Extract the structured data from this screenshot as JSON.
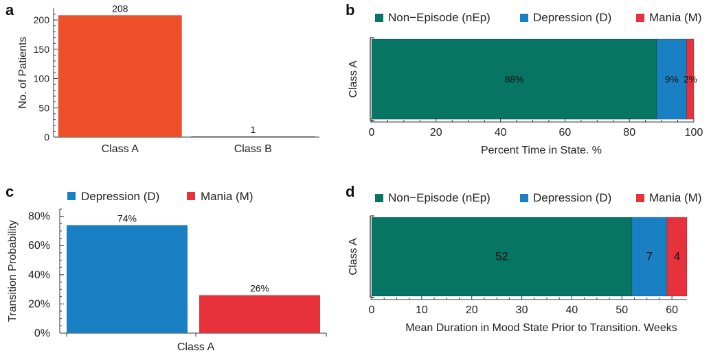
{
  "panel_labels": {
    "a": "a",
    "b": "b",
    "c": "c",
    "d": "d"
  },
  "colors": {
    "nEp": "#067563",
    "D": "#1a80c4",
    "M": "#e8323b",
    "A_bar": "#ee4f2a"
  },
  "chart_data": [
    {
      "id": "a",
      "type": "bar",
      "categories": [
        "Class A",
        "Class B"
      ],
      "values": [
        208,
        1
      ],
      "data_labels": [
        "208",
        "1"
      ],
      "ylabel": "No. of Patients",
      "ylim": [
        0,
        220
      ],
      "yticks": [
        0,
        50,
        100,
        150,
        200
      ],
      "ytick_labels": [
        "0",
        "50",
        "100",
        "150",
        "200"
      ]
    },
    {
      "id": "b",
      "type": "bar",
      "orientation": "horizontal-stacked",
      "categories": [
        "Class A"
      ],
      "series": [
        {
          "name": "Non−Episode (nEp)",
          "key": "nEp",
          "values": [
            88.5
          ],
          "label": "88%"
        },
        {
          "name": "Depression (D)",
          "key": "D",
          "values": [
            9.3
          ],
          "label": "9%"
        },
        {
          "name": "Mania (M)",
          "key": "M",
          "values": [
            2.2
          ],
          "label": "2%"
        }
      ],
      "xlabel": "Percent Time in State. %",
      "xlim": [
        0,
        100
      ],
      "xticks": [
        0,
        20,
        40,
        60,
        80,
        100
      ],
      "xtick_labels": [
        "0",
        "20",
        "40",
        "60",
        "80",
        "100"
      ],
      "legend": "top"
    },
    {
      "id": "c",
      "type": "bar",
      "categories": [
        "Class A"
      ],
      "series": [
        {
          "name": "Depression (D)",
          "key": "D",
          "values": [
            74
          ],
          "label": "74%"
        },
        {
          "name": "Mania (M)",
          "key": "M",
          "values": [
            26
          ],
          "label": "26%"
        }
      ],
      "ylabel": "Transition Probability",
      "ylim": [
        0,
        85
      ],
      "yticks": [
        0,
        20,
        40,
        60,
        80
      ],
      "ytick_labels": [
        "0%",
        "20%",
        "40%",
        "60%",
        "80%"
      ],
      "legend": "top"
    },
    {
      "id": "d",
      "type": "bar",
      "orientation": "horizontal-stacked",
      "categories": [
        "Class A"
      ],
      "series": [
        {
          "name": "Non−Episode (nEp)",
          "key": "nEp",
          "values": [
            52
          ],
          "label": "52"
        },
        {
          "name": "Depression (D)",
          "key": "D",
          "values": [
            7
          ],
          "label": "7"
        },
        {
          "name": "Mania (M)",
          "key": "M",
          "values": [
            4
          ],
          "label": "4"
        }
      ],
      "xlabel": "Mean Duration in Mood State Prior to Transition. Weeks",
      "xlim": [
        0,
        63
      ],
      "xticks": [
        0,
        10,
        20,
        30,
        40,
        50,
        60
      ],
      "xtick_labels": [
        "0",
        "10",
        "20",
        "30",
        "40",
        "50",
        "60"
      ],
      "legend": "top"
    }
  ]
}
